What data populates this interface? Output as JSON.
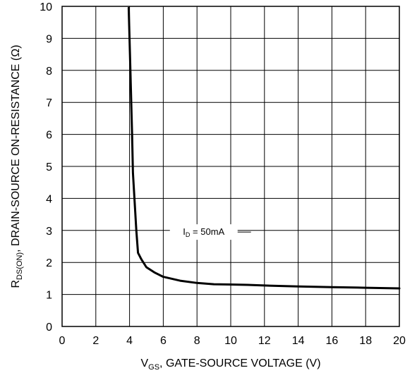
{
  "chart_data": {
    "type": "line",
    "xlabel": {
      "main": "V",
      "sub": "GS",
      "rest": ", GATE-SOURCE VOLTAGE (V)"
    },
    "ylabel": {
      "main": "R",
      "sub": "DS(ON)",
      "rest": ", DRAIN-SOURCE ON-RESISTANCE (Ω)"
    },
    "xlim": [
      0,
      20
    ],
    "ylim": [
      0,
      10
    ],
    "xticks": [
      0,
      2,
      4,
      6,
      8,
      10,
      12,
      14,
      16,
      18,
      20
    ],
    "yticks": [
      0,
      1,
      2,
      3,
      4,
      5,
      6,
      7,
      8,
      9,
      10
    ],
    "grid": true,
    "annotation": {
      "main": "I",
      "sub": "D",
      "rest": " = 50mA",
      "anchor_x": 8.4,
      "anchor_y": 2.95,
      "leader_from_x": 6.7,
      "leader_to_x": 11.2
    },
    "series": [
      {
        "color": "#000000",
        "x": [
          3.95,
          4.05,
          4.15,
          4.2,
          4.3,
          4.4,
          4.5,
          4.7,
          5.0,
          5.5,
          6.0,
          7.0,
          8.0,
          9.0,
          10.0,
          11.0,
          12.0,
          14.0,
          16.0,
          18.0,
          20.0
        ],
        "y": [
          9.95,
          8.0,
          6.0,
          4.8,
          3.9,
          3.0,
          2.3,
          2.1,
          1.85,
          1.68,
          1.55,
          1.43,
          1.36,
          1.32,
          1.31,
          1.3,
          1.28,
          1.25,
          1.23,
          1.21,
          1.19
        ]
      }
    ]
  }
}
